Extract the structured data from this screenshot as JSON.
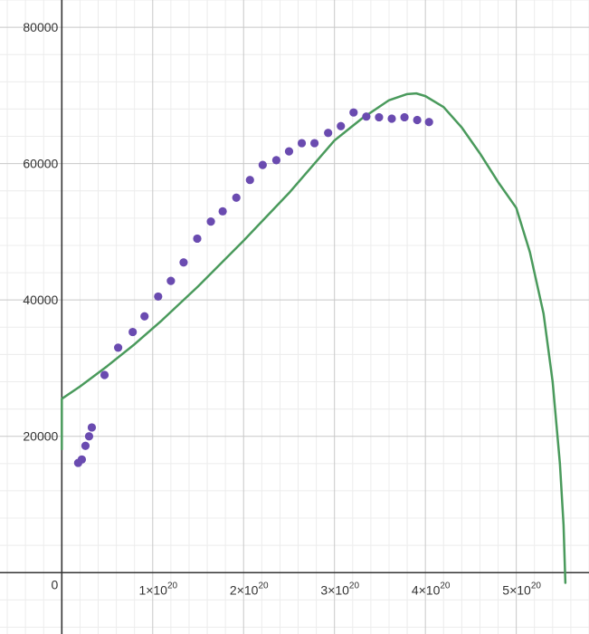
{
  "chart_data": {
    "type": "scatter",
    "title": "",
    "xlabel": "",
    "ylabel": "",
    "xlim": [
      -6.8e+19,
      5.8e+20
    ],
    "ylim": [
      -9000,
      84000
    ],
    "grid": true,
    "origin_label": "0",
    "x_ticks": [
      {
        "value": 1e+20,
        "mantissa": "1",
        "exp": "20"
      },
      {
        "value": 2e+20,
        "mantissa": "2",
        "exp": "20"
      },
      {
        "value": 3e+20,
        "mantissa": "3",
        "exp": "20"
      },
      {
        "value": 4e+20,
        "mantissa": "4",
        "exp": "20"
      },
      {
        "value": 5e+20,
        "mantissa": "5",
        "exp": "20"
      }
    ],
    "y_ticks": [
      {
        "value": 20000,
        "label": "20000"
      },
      {
        "value": 40000,
        "label": "40000"
      },
      {
        "value": 60000,
        "label": "60000"
      },
      {
        "value": 80000,
        "label": "80000"
      }
    ],
    "colors": {
      "points": "#6a4bb0",
      "curve": "#4a9a5c",
      "grid_major": "#c8c8c8",
      "grid_minor": "#ececec",
      "axis": "#333333"
    },
    "series": [
      {
        "kind": "points",
        "x": [
          1.8e+19,
          2.2e+19,
          2.6e+19,
          3e+19,
          3.3e+19,
          4.7e+19,
          6.2e+19,
          7.8e+19,
          9.1e+19,
          1.06e+20,
          1.2e+20,
          1.34e+20,
          1.49e+20,
          1.64e+20,
          1.77e+20,
          1.92e+20,
          2.07e+20,
          2.21e+20,
          2.36e+20,
          2.5e+20,
          2.64e+20,
          2.78e+20,
          2.93e+20,
          3.07e+20,
          3.21e+20,
          3.35e+20,
          3.49e+20,
          3.63e+20,
          3.77e+20,
          3.91e+20,
          4.04e+20
        ],
        "y": [
          16100,
          16600,
          18600,
          20000,
          21300,
          29000,
          33000,
          35300,
          37600,
          40500,
          42800,
          45500,
          49000,
          51500,
          53000,
          55000,
          57600,
          59800,
          60500,
          61800,
          63000,
          63000,
          64500,
          65500,
          67500,
          66900,
          66800,
          66600,
          66800,
          66400,
          66100
        ]
      },
      {
        "kind": "curve",
        "x": [
          0,
          2e+19,
          5e+19,
          8e+19,
          1.1e+20,
          1.5e+20,
          2e+20,
          2.5e+20,
          3e+20,
          3.3e+20,
          3.6e+20,
          3.8e+20,
          3.9e+20,
          4e+20,
          4.2e+20,
          4.4e+20,
          4.6e+20,
          4.8e+20,
          5e+20,
          5.15e+20,
          5.3e+20,
          5.4e+20,
          5.48e+20,
          5.52e+20,
          5.54e+20
        ],
        "y": [
          25500,
          27300,
          30300,
          33500,
          37000,
          42000,
          48700,
          55700,
          63400,
          66600,
          69300,
          70200,
          70300,
          69900,
          68300,
          65300,
          61500,
          57300,
          53500,
          47000,
          38000,
          28000,
          16000,
          7000,
          -1500
        ],
        "segment": {
          "x": 0,
          "y_from": 18000,
          "y_to": 25500
        }
      }
    ]
  }
}
